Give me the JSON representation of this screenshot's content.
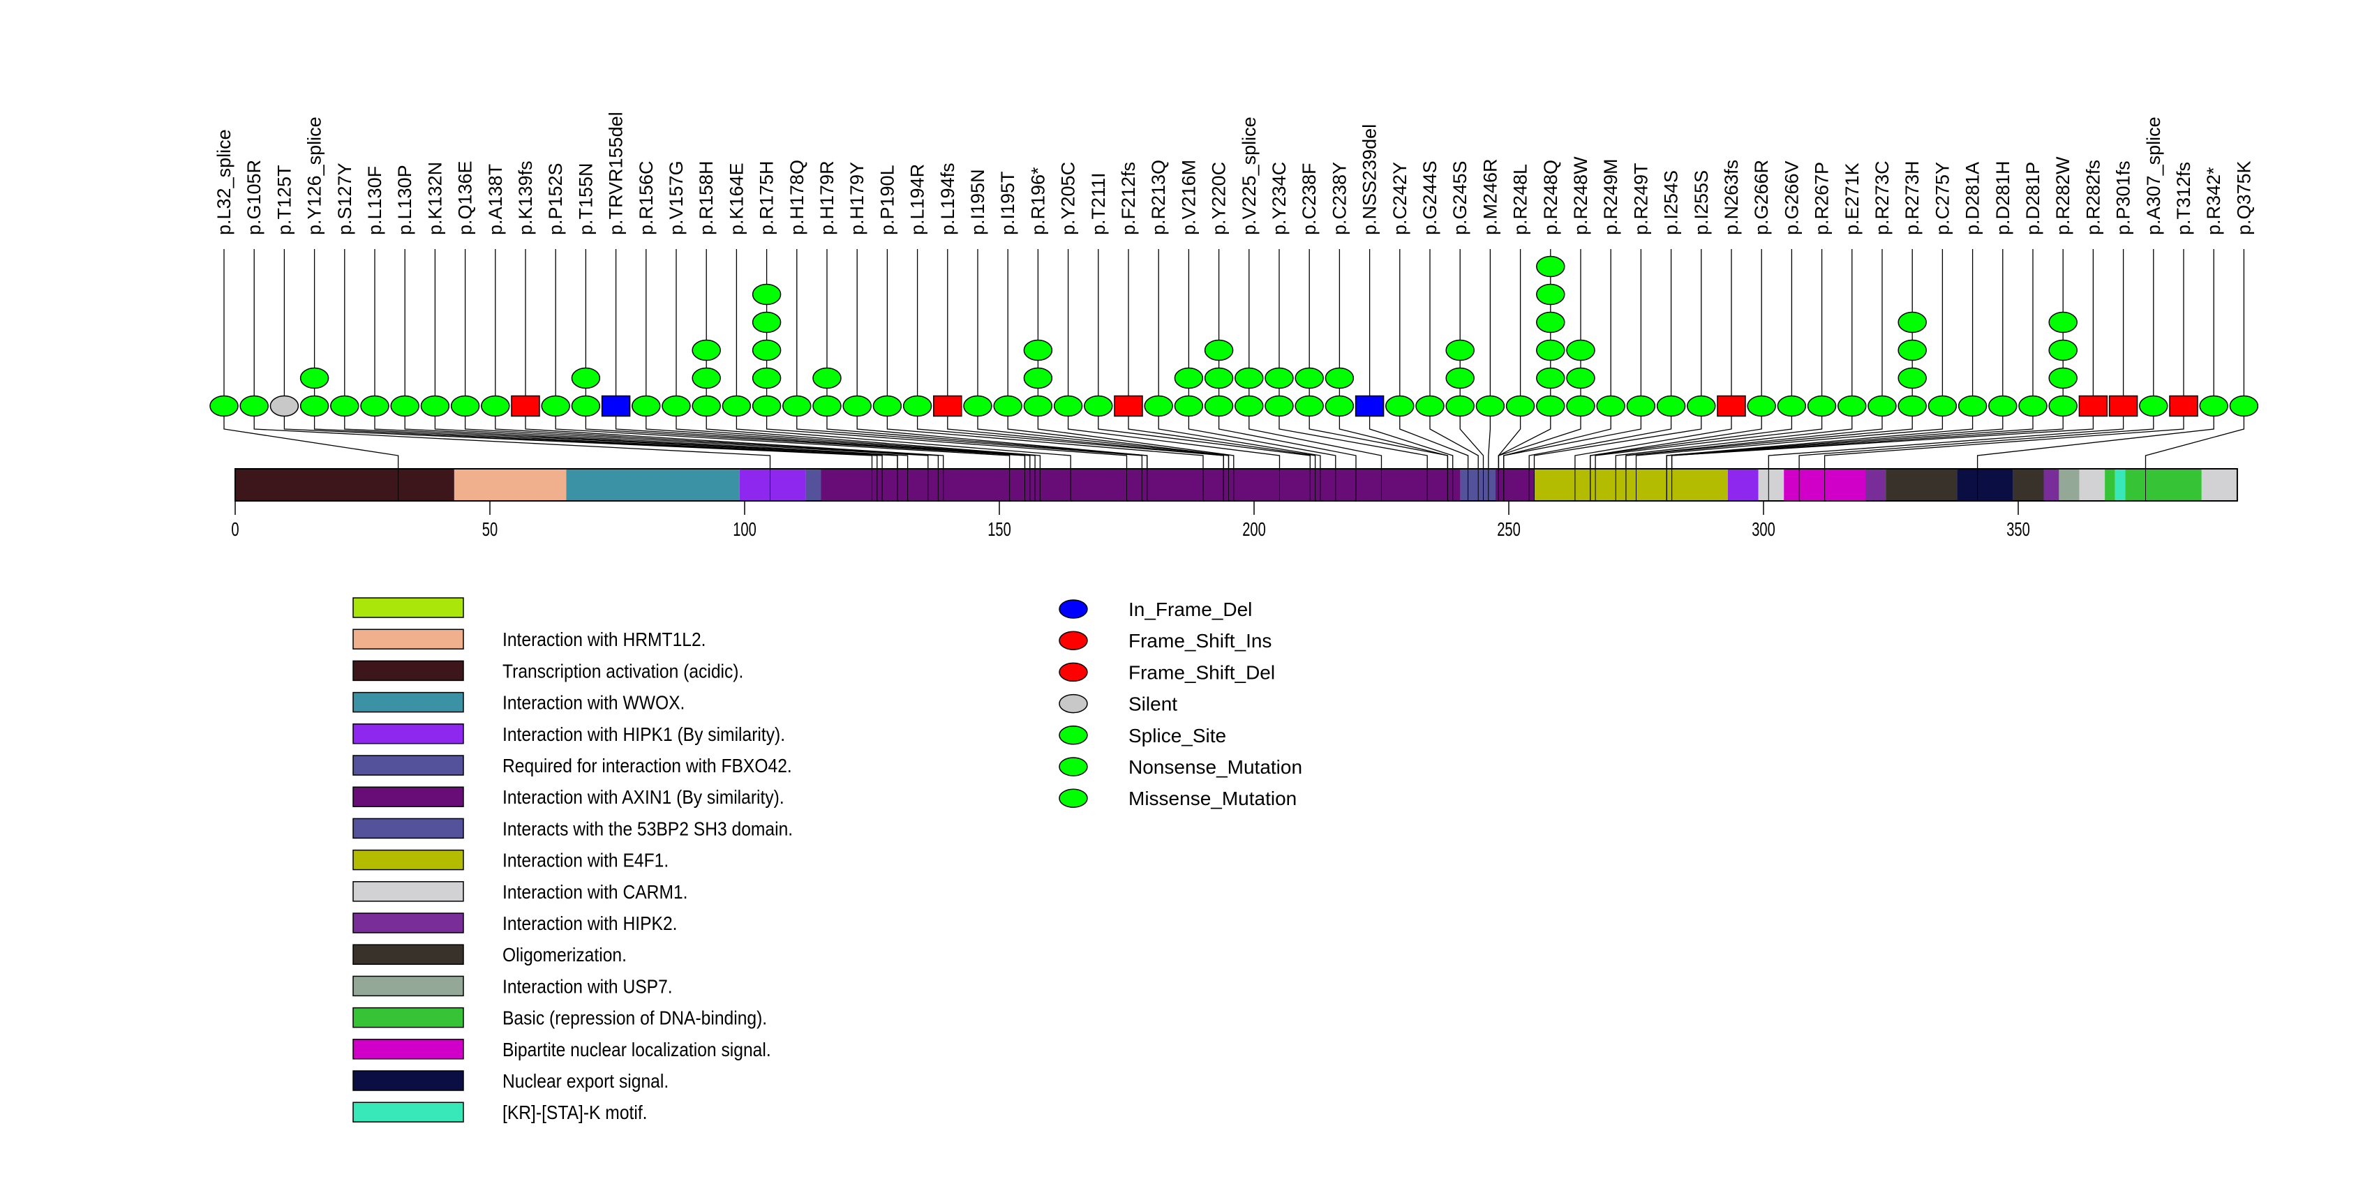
{
  "chart_data": {
    "type": "lollipop",
    "title": "",
    "xlabel": "",
    "ylabel": "",
    "protein_length": 393,
    "axis": {
      "range": [
        0,
        393
      ],
      "ticks": [
        0,
        50,
        100,
        150,
        200,
        250,
        300,
        350
      ]
    },
    "mutation_type_colors": {
      "In_Frame_Del": "#0000ff",
      "Frame_Shift_Ins": "#ff0000",
      "Frame_Shift_Del": "#ff0000",
      "Silent": "#c8c8c8",
      "Splice_Site": "#00ff00",
      "Nonsense_Mutation": "#00ff00",
      "Missense_Mutation": "#00ff00"
    },
    "mutations": [
      {
        "label": "p.L32_splice",
        "position": 32,
        "count": 1,
        "type": "Splice_Site"
      },
      {
        "label": "p.G105R",
        "position": 105,
        "count": 1,
        "type": "Missense_Mutation"
      },
      {
        "label": "p.T125T",
        "position": 125,
        "count": 1,
        "type": "Silent"
      },
      {
        "label": "p.Y126_splice",
        "position": 126,
        "count": 2,
        "type": "Splice_Site"
      },
      {
        "label": "p.S127Y",
        "position": 127,
        "count": 1,
        "type": "Missense_Mutation"
      },
      {
        "label": "p.L130F",
        "position": 130,
        "count": 1,
        "type": "Missense_Mutation"
      },
      {
        "label": "p.L130P",
        "position": 130,
        "count": 1,
        "type": "Missense_Mutation"
      },
      {
        "label": "p.K132N",
        "position": 132,
        "count": 1,
        "type": "Missense_Mutation"
      },
      {
        "label": "p.Q136E",
        "position": 136,
        "count": 1,
        "type": "Missense_Mutation"
      },
      {
        "label": "p.A138T",
        "position": 138,
        "count": 1,
        "type": "Missense_Mutation"
      },
      {
        "label": "p.K139fs",
        "position": 139,
        "count": 1,
        "type": "Frame_Shift_Del"
      },
      {
        "label": "p.P152S",
        "position": 152,
        "count": 1,
        "type": "Missense_Mutation"
      },
      {
        "label": "p.T155N",
        "position": 155,
        "count": 2,
        "type": "Missense_Mutation"
      },
      {
        "label": "p.TRVR155del",
        "position": 155,
        "count": 1,
        "type": "In_Frame_Del"
      },
      {
        "label": "p.R156C",
        "position": 156,
        "count": 1,
        "type": "Missense_Mutation"
      },
      {
        "label": "p.V157G",
        "position": 157,
        "count": 1,
        "type": "Missense_Mutation"
      },
      {
        "label": "p.R158H",
        "position": 158,
        "count": 3,
        "type": "Missense_Mutation"
      },
      {
        "label": "p.K164E",
        "position": 164,
        "count": 1,
        "type": "Missense_Mutation"
      },
      {
        "label": "p.R175H",
        "position": 175,
        "count": 5,
        "type": "Missense_Mutation"
      },
      {
        "label": "p.H178Q",
        "position": 178,
        "count": 1,
        "type": "Missense_Mutation"
      },
      {
        "label": "p.H179R",
        "position": 179,
        "count": 2,
        "type": "Missense_Mutation"
      },
      {
        "label": "p.H179Y",
        "position": 179,
        "count": 1,
        "type": "Missense_Mutation"
      },
      {
        "label": "p.P190L",
        "position": 190,
        "count": 1,
        "type": "Missense_Mutation"
      },
      {
        "label": "p.L194R",
        "position": 194,
        "count": 1,
        "type": "Missense_Mutation"
      },
      {
        "label": "p.L194fs",
        "position": 194,
        "count": 1,
        "type": "Frame_Shift_Del"
      },
      {
        "label": "p.I195N",
        "position": 195,
        "count": 1,
        "type": "Missense_Mutation"
      },
      {
        "label": "p.I195T",
        "position": 195,
        "count": 1,
        "type": "Missense_Mutation"
      },
      {
        "label": "p.R196*",
        "position": 196,
        "count": 3,
        "type": "Nonsense_Mutation"
      },
      {
        "label": "p.Y205C",
        "position": 205,
        "count": 1,
        "type": "Missense_Mutation"
      },
      {
        "label": "p.T211I",
        "position": 211,
        "count": 1,
        "type": "Missense_Mutation"
      },
      {
        "label": "p.F212fs",
        "position": 212,
        "count": 1,
        "type": "Frame_Shift_Del"
      },
      {
        "label": "p.R213Q",
        "position": 213,
        "count": 1,
        "type": "Missense_Mutation"
      },
      {
        "label": "p.V216M",
        "position": 216,
        "count": 2,
        "type": "Missense_Mutation"
      },
      {
        "label": "p.Y220C",
        "position": 220,
        "count": 3,
        "type": "Missense_Mutation"
      },
      {
        "label": "p.V225_splice",
        "position": 225,
        "count": 2,
        "type": "Splice_Site"
      },
      {
        "label": "p.Y234C",
        "position": 234,
        "count": 2,
        "type": "Missense_Mutation"
      },
      {
        "label": "p.C238F",
        "position": 238,
        "count": 2,
        "type": "Missense_Mutation"
      },
      {
        "label": "p.C238Y",
        "position": 238,
        "count": 2,
        "type": "Missense_Mutation"
      },
      {
        "label": "p.NSS239del",
        "position": 239,
        "count": 1,
        "type": "In_Frame_Del"
      },
      {
        "label": "p.C242Y",
        "position": 242,
        "count": 1,
        "type": "Missense_Mutation"
      },
      {
        "label": "p.G244S",
        "position": 244,
        "count": 1,
        "type": "Missense_Mutation"
      },
      {
        "label": "p.G245S",
        "position": 245,
        "count": 3,
        "type": "Missense_Mutation"
      },
      {
        "label": "p.M246R",
        "position": 246,
        "count": 1,
        "type": "Missense_Mutation"
      },
      {
        "label": "p.R248L",
        "position": 248,
        "count": 1,
        "type": "Missense_Mutation"
      },
      {
        "label": "p.R248Q",
        "position": 248,
        "count": 6,
        "type": "Missense_Mutation"
      },
      {
        "label": "p.R248W",
        "position": 248,
        "count": 3,
        "type": "Missense_Mutation"
      },
      {
        "label": "p.R249M",
        "position": 249,
        "count": 1,
        "type": "Missense_Mutation"
      },
      {
        "label": "p.R249T",
        "position": 249,
        "count": 1,
        "type": "Missense_Mutation"
      },
      {
        "label": "p.I254S",
        "position": 254,
        "count": 1,
        "type": "Missense_Mutation"
      },
      {
        "label": "p.I255S",
        "position": 255,
        "count": 1,
        "type": "Missense_Mutation"
      },
      {
        "label": "p.N263fs",
        "position": 263,
        "count": 1,
        "type": "Frame_Shift_Del"
      },
      {
        "label": "p.G266R",
        "position": 266,
        "count": 1,
        "type": "Missense_Mutation"
      },
      {
        "label": "p.G266V",
        "position": 266,
        "count": 1,
        "type": "Missense_Mutation"
      },
      {
        "label": "p.R267P",
        "position": 267,
        "count": 1,
        "type": "Missense_Mutation"
      },
      {
        "label": "p.E271K",
        "position": 271,
        "count": 1,
        "type": "Missense_Mutation"
      },
      {
        "label": "p.R273C",
        "position": 273,
        "count": 1,
        "type": "Missense_Mutation"
      },
      {
        "label": "p.R273H",
        "position": 273,
        "count": 4,
        "type": "Missense_Mutation"
      },
      {
        "label": "p.C275Y",
        "position": 275,
        "count": 1,
        "type": "Missense_Mutation"
      },
      {
        "label": "p.D281A",
        "position": 281,
        "count": 1,
        "type": "Missense_Mutation"
      },
      {
        "label": "p.D281H",
        "position": 281,
        "count": 1,
        "type": "Missense_Mutation"
      },
      {
        "label": "p.D281P",
        "position": 281,
        "count": 1,
        "type": "Missense_Mutation"
      },
      {
        "label": "p.R282W",
        "position": 282,
        "count": 4,
        "type": "Missense_Mutation"
      },
      {
        "label": "p.R282fs",
        "position": 282,
        "count": 1,
        "type": "Frame_Shift_Del"
      },
      {
        "label": "p.P301fs",
        "position": 301,
        "count": 1,
        "type": "Frame_Shift_Del"
      },
      {
        "label": "p.A307_splice",
        "position": 307,
        "count": 1,
        "type": "Splice_Site"
      },
      {
        "label": "p.T312fs",
        "position": 312,
        "count": 1,
        "type": "Frame_Shift_Del"
      },
      {
        "label": "p.R342*",
        "position": 342,
        "count": 1,
        "type": "Nonsense_Mutation"
      },
      {
        "label": "p.Q375K",
        "position": 375,
        "count": 1,
        "type": "Missense_Mutation"
      }
    ],
    "domains": [
      {
        "name": "Transcription activation (acidic).",
        "start": 0,
        "end": 43,
        "color": "#3c161a"
      },
      {
        "name": "Interaction with HRMT1L2.",
        "start": 43,
        "end": 65,
        "color": "#f0b08e"
      },
      {
        "name": "Interaction with WWOX.",
        "start": 65,
        "end": 99,
        "color": "#3a92a4"
      },
      {
        "name": "Interaction with HIPK1 (By similarity).",
        "start": 99,
        "end": 112,
        "color": "#8e28ee"
      },
      {
        "name": "Required for interaction with FBXO42.",
        "start": 112,
        "end": 115,
        "color": "#54529a"
      },
      {
        "name": "Interaction with AXIN1 (By similarity).",
        "start": 115,
        "end": 240.5,
        "color": "#680c78"
      },
      {
        "name": "Interacts with the 53BP2 SH3 domain.",
        "start": 240.5,
        "end": 247.4,
        "color": "#54529a"
      },
      {
        "name": "Interaction with AXIN1 (By similarity).",
        "start": 247.4,
        "end": 255,
        "color": "#680c78"
      },
      {
        "name": "Interaction with E4F1.",
        "start": 255,
        "end": 293,
        "color": "#b4bc00"
      },
      {
        "name": "Interaction with HIPK1 (By similarity).",
        "start": 293,
        "end": 299,
        "color": "#8e28ee"
      },
      {
        "name": "Interaction with CARM1.",
        "start": 299,
        "end": 304,
        "color": "#d2d2d4"
      },
      {
        "name": "Bipartite nuclear localization signal.",
        "start": 304,
        "end": 320,
        "color": "#d000c8"
      },
      {
        "name": "Interaction with HIPK2.",
        "start": 320,
        "end": 324,
        "color": "#782d98"
      },
      {
        "name": "Oligomerization.",
        "start": 324,
        "end": 338,
        "color": "#38322a"
      },
      {
        "name": "Nuclear export signal.",
        "start": 338,
        "end": 349,
        "color": "#0a0e42"
      },
      {
        "name": "Oligomerization.",
        "start": 349,
        "end": 355,
        "color": "#38322a"
      },
      {
        "name": "Interaction with HIPK2.",
        "start": 355,
        "end": 358,
        "color": "#782d98"
      },
      {
        "name": "Interaction with USP7.",
        "start": 358,
        "end": 362,
        "color": "#94a898"
      },
      {
        "name": "Interaction with CARM1.",
        "start": 362,
        "end": 367,
        "color": "#d2d2d4"
      },
      {
        "name": "Basic (repression of DNA-binding).",
        "start": 367,
        "end": 369,
        "color": "#36c436"
      },
      {
        "name": "[KR]-[STA]-K motif.",
        "start": 369,
        "end": 371,
        "color": "#38e8b8"
      },
      {
        "name": "Basic (repression of DNA-binding).",
        "start": 371,
        "end": 386,
        "color": "#36c436"
      },
      {
        "name": "Interaction with CARM1.",
        "start": 386,
        "end": 393,
        "color": "#d2d2d4"
      }
    ],
    "domain_legend": [
      {
        "label": "",
        "color": "#aae60a"
      },
      {
        "label": "Interaction with HRMT1L2.",
        "color": "#f0b08e"
      },
      {
        "label": "Transcription activation (acidic).",
        "color": "#3c161a"
      },
      {
        "label": "Interaction with WWOX.",
        "color": "#3a92a4"
      },
      {
        "label": "Interaction with HIPK1 (By similarity).",
        "color": "#8e28ee"
      },
      {
        "label": "Required for interaction with FBXO42.",
        "color": "#54529a"
      },
      {
        "label": "Interaction with AXIN1 (By similarity).",
        "color": "#680c78"
      },
      {
        "label": "Interacts with the 53BP2 SH3 domain.",
        "color": "#54529a"
      },
      {
        "label": "Interaction with E4F1.",
        "color": "#b4bc00"
      },
      {
        "label": "Interaction with CARM1.",
        "color": "#d2d2d4"
      },
      {
        "label": "Interaction with HIPK2.",
        "color": "#782d98"
      },
      {
        "label": "Oligomerization.",
        "color": "#38322a"
      },
      {
        "label": "Interaction with USP7.",
        "color": "#94a898"
      },
      {
        "label": "Basic (repression of DNA-binding).",
        "color": "#36c436"
      },
      {
        "label": "Bipartite nuclear localization signal.",
        "color": "#d000c8"
      },
      {
        "label": "Nuclear export signal.",
        "color": "#0a0e42"
      },
      {
        "label": "[KR]-[STA]-K motif.",
        "color": "#38e8b8"
      }
    ],
    "type_legend": [
      {
        "label": "In_Frame_Del",
        "color": "#0000ff"
      },
      {
        "label": "Frame_Shift_Ins",
        "color": "#ff0000"
      },
      {
        "label": "Frame_Shift_Del",
        "color": "#ff0000"
      },
      {
        "label": "Silent",
        "color": "#c8c8c8"
      },
      {
        "label": "Splice_Site",
        "color": "#00ff00"
      },
      {
        "label": "Nonsense_Mutation",
        "color": "#00ff00"
      },
      {
        "label": "Missense_Mutation",
        "color": "#00ff00"
      }
    ]
  }
}
